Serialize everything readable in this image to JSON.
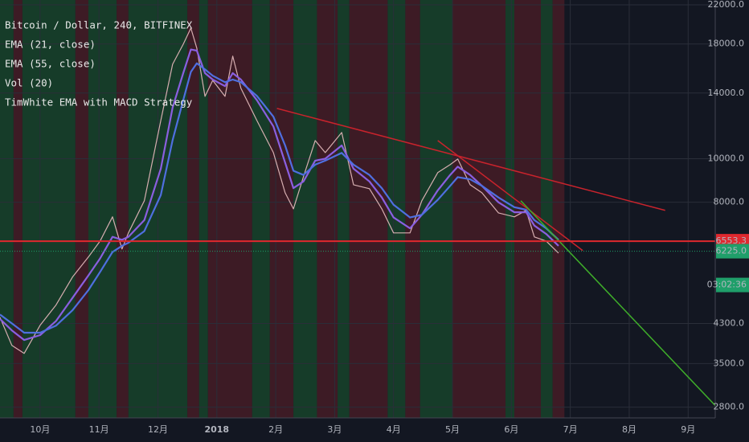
{
  "chart_data": {
    "type": "line",
    "title": "Bitcoin / Dollar, 240, BITFINEX",
    "ylog": true,
    "grid": true,
    "xlim": [
      -0.68,
      11.46
    ],
    "ylim": [
      2650,
      22550
    ],
    "xticks": [
      {
        "value": 0,
        "label": "10月"
      },
      {
        "value": 1,
        "label": "11月"
      },
      {
        "value": 2,
        "label": "12月"
      },
      {
        "value": 3,
        "label": "2018"
      },
      {
        "value": 4,
        "label": "2月"
      },
      {
        "value": 5,
        "label": "3月"
      },
      {
        "value": 6,
        "label": "4月"
      },
      {
        "value": 7,
        "label": "5月"
      },
      {
        "value": 8,
        "label": "6月"
      },
      {
        "value": 9,
        "label": "7月"
      },
      {
        "value": 10,
        "label": "8月"
      },
      {
        "value": 11,
        "label": "9月"
      }
    ],
    "yticks": [
      {
        "value": 2800,
        "label": "2800.0"
      },
      {
        "value": 3500,
        "label": "3500.0"
      },
      {
        "value": 4300,
        "label": "4300.0"
      },
      {
        "value": 8000,
        "label": "8000.0"
      },
      {
        "value": 10000,
        "label": "10000.0"
      },
      {
        "value": 14000,
        "label": "14000.0"
      },
      {
        "value": 18000,
        "label": "18000.0"
      },
      {
        "value": 22000,
        "label": "22000.0"
      }
    ],
    "x": [
      -0.68,
      -0.48,
      -0.27,
      0,
      0.27,
      0.55,
      0.82,
      1.02,
      1.23,
      1.39,
      1.5,
      1.77,
      2.05,
      2.25,
      2.43,
      2.56,
      2.66,
      2.8,
      2.93,
      3.14,
      3.27,
      3.41,
      3.68,
      3.96,
      4.16,
      4.3,
      4.47,
      4.67,
      4.84,
      5.12,
      5.32,
      5.59,
      5.8,
      6.0,
      6.28,
      6.48,
      6.75,
      6.96,
      7.09,
      7.3,
      7.5,
      7.78,
      8.05,
      8.25,
      8.39,
      8.59,
      8.8
    ],
    "series": [
      {
        "color": "#d6aeb0",
        "values": [
          4438,
          3843,
          3688,
          4259,
          4722,
          5452,
          6043,
          6560,
          7425,
          6297,
          6837,
          8061,
          12164,
          16225,
          17983,
          19525,
          17620,
          13763,
          14940,
          13763,
          16909,
          14342,
          12164,
          10318,
          8399,
          7735,
          9119,
          10976,
          10318,
          11436,
          8751,
          8576,
          7735,
          6837,
          6837,
          8061,
          9310,
          9700,
          9984,
          8751,
          8399,
          7577,
          7425,
          7674,
          6699,
          6560,
          6167
        ]
      },
      {
        "name": "EMA (21, close)",
        "color": "#8a5fe0",
        "values": [
          4400,
          4150,
          3950,
          4050,
          4350,
          4900,
          5500,
          6000,
          6700,
          6600,
          6700,
          7300,
          9500,
          13000,
          15500,
          17500,
          17400,
          15500,
          15000,
          14500,
          15500,
          15000,
          13500,
          11800,
          9800,
          8600,
          8900,
          9900,
          10000,
          10700,
          9500,
          8900,
          8200,
          7400,
          7000,
          7500,
          8500,
          9200,
          9600,
          9200,
          8700,
          8000,
          7600,
          7600,
          7100,
          6800,
          6400
        ]
      },
      {
        "name": "EMA (55, close)",
        "color": "#4f6fe0",
        "values": [
          4500,
          4300,
          4100,
          4100,
          4250,
          4600,
          5100,
          5600,
          6200,
          6400,
          6500,
          6900,
          8300,
          11000,
          13500,
          15600,
          16300,
          15800,
          15300,
          14800,
          15000,
          14800,
          13800,
          12400,
          10700,
          9400,
          9200,
          9700,
          9900,
          10300,
          9700,
          9200,
          8600,
          7900,
          7400,
          7500,
          8100,
          8700,
          9100,
          9000,
          8700,
          8200,
          7800,
          7700,
          7300,
          7000,
          6600
        ]
      }
    ],
    "indicators": [
      "Vol (20)",
      "TimWhite EMA with MACD Strategy"
    ],
    "bands": [
      {
        "x": [
          -0.68,
          -0.45
        ],
        "color": "#17402a"
      },
      {
        "x": [
          -0.45,
          -0.3
        ],
        "color": "#421c26"
      },
      {
        "x": [
          -0.3,
          0.6
        ],
        "color": "#17402a"
      },
      {
        "x": [
          0.6,
          0.82
        ],
        "color": "#421c26"
      },
      {
        "x": [
          0.82,
          1.3
        ],
        "color": "#17402a"
      },
      {
        "x": [
          1.3,
          1.5
        ],
        "color": "#421c26"
      },
      {
        "x": [
          1.5,
          2.5
        ],
        "color": "#17402a"
      },
      {
        "x": [
          2.5,
          2.7
        ],
        "color": "#421c26"
      },
      {
        "x": [
          2.7,
          2.85
        ],
        "color": "#17402a"
      },
      {
        "x": [
          2.85,
          3.6
        ],
        "color": "#421c26"
      },
      {
        "x": [
          3.6,
          3.9
        ],
        "color": "#17402a"
      },
      {
        "x": [
          3.9,
          4.3
        ],
        "color": "#421c26"
      },
      {
        "x": [
          4.3,
          4.7
        ],
        "color": "#17402a"
      },
      {
        "x": [
          4.7,
          5.05
        ],
        "color": "#421c26"
      },
      {
        "x": [
          5.05,
          5.25
        ],
        "color": "#17402a"
      },
      {
        "x": [
          5.25,
          5.9
        ],
        "color": "#421c26"
      },
      {
        "x": [
          5.9,
          6.2
        ],
        "color": "#17402a"
      },
      {
        "x": [
          6.2,
          6.45
        ],
        "color": "#421c26"
      },
      {
        "x": [
          6.45,
          7.0
        ],
        "color": "#17402a"
      },
      {
        "x": [
          7.0,
          7.9
        ],
        "color": "#421c26"
      },
      {
        "x": [
          7.9,
          8.05
        ],
        "color": "#17402a"
      },
      {
        "x": [
          8.05,
          8.5
        ],
        "color": "#421c26"
      },
      {
        "x": [
          8.5,
          8.7
        ],
        "color": "#17402a"
      },
      {
        "x": [
          8.7,
          8.9
        ],
        "color": "#421c26"
      }
    ],
    "trendlines": [
      {
        "color": "#c8232c",
        "x": [
          4.02,
          10.61
        ],
        "values": [
          12940,
          7674
        ]
      },
      {
        "color": "#c8232c",
        "x": [
          6.75,
          9.21
        ],
        "values": [
          10976,
          6246
        ]
      },
      {
        "color": "#3fae2a",
        "x": [
          8.16,
          11.46
        ],
        "values": [
          8061,
          2823
        ]
      }
    ],
    "price_markers": [
      {
        "value": 6553.3,
        "label": "6553.3",
        "color": "#e0282e"
      },
      {
        "value": 6225,
        "label": "6225.0",
        "color": "#1f9f6a",
        "countdown": "03:02:36"
      }
    ]
  }
}
